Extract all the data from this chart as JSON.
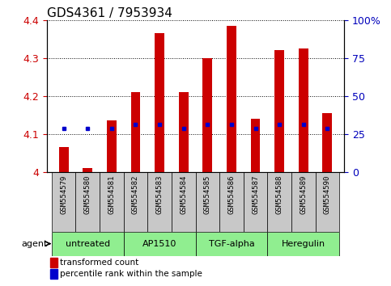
{
  "title": "GDS4361 / 7953934",
  "samples": [
    "GSM554579",
    "GSM554580",
    "GSM554581",
    "GSM554582",
    "GSM554583",
    "GSM554584",
    "GSM554585",
    "GSM554586",
    "GSM554587",
    "GSM554588",
    "GSM554589",
    "GSM554590"
  ],
  "red_values": [
    4.065,
    4.01,
    4.135,
    4.21,
    4.365,
    4.21,
    4.3,
    4.385,
    4.14,
    4.32,
    4.325,
    4.155
  ],
  "blue_values": [
    4.115,
    4.115,
    4.115,
    4.125,
    4.125,
    4.115,
    4.125,
    4.125,
    4.115,
    4.125,
    4.125,
    4.115
  ],
  "ylim_left": [
    4.0,
    4.4
  ],
  "ylim_right": [
    0,
    100
  ],
  "yticks_left": [
    4.0,
    4.1,
    4.2,
    4.3,
    4.4
  ],
  "ytick_labels_left": [
    "4",
    "4.1",
    "4.2",
    "4.3",
    "4.4"
  ],
  "yticks_right": [
    0,
    25,
    50,
    75,
    100
  ],
  "ytick_labels_right": [
    "0",
    "25",
    "50",
    "75",
    "100%"
  ],
  "groups": [
    {
      "label": "untreated",
      "start": 0,
      "end": 3
    },
    {
      "label": "AP1510",
      "start": 3,
      "end": 6
    },
    {
      "label": "TGF-alpha",
      "start": 6,
      "end": 9
    },
    {
      "label": "Heregulin",
      "start": 9,
      "end": 12
    }
  ],
  "bar_color": "#CC0000",
  "dot_color": "#0000CC",
  "bar_width": 0.4,
  "legend_red": "transformed count",
  "legend_blue": "percentile rank within the sample",
  "title_fontsize": 11,
  "axis_color_left": "#CC0000",
  "axis_color_right": "#0000BB",
  "group_color": "#90EE90",
  "sample_box_color": "#C8C8C8",
  "agent_label": "agent"
}
